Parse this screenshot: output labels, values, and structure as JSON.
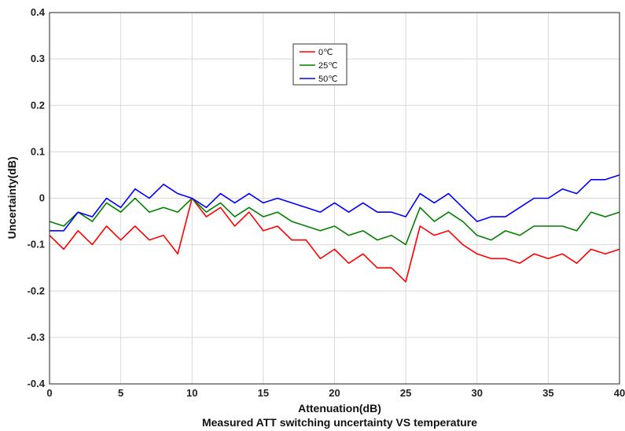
{
  "chart_data": {
    "type": "line",
    "title": "Measured ATT switching uncertainty VS temperature",
    "xlabel": "Attenuation(dB)",
    "ylabel": "Uncertainty(dB)",
    "xlim": [
      0,
      40
    ],
    "ylim": [
      -0.4,
      0.4
    ],
    "xticks": [
      0,
      5,
      10,
      15,
      20,
      25,
      30,
      35,
      40
    ],
    "yticks": [
      -0.4,
      -0.3,
      -0.2,
      -0.1,
      0,
      0.1,
      0.2,
      0.3,
      0.4
    ],
    "xtick_labels": [
      "0",
      "5",
      "10",
      "15",
      "20",
      "25",
      "30",
      "35",
      "40"
    ],
    "ytick_labels": [
      "-0.4",
      "-0.3",
      "-0.2",
      "-0.1",
      "0",
      "0.1",
      "0.2",
      "0.3",
      "0.4"
    ],
    "grid": true,
    "legend_position": "top-center",
    "x": [
      0,
      1,
      2,
      3,
      4,
      5,
      6,
      7,
      8,
      9,
      10,
      11,
      12,
      13,
      14,
      15,
      16,
      17,
      18,
      19,
      20,
      21,
      22,
      23,
      24,
      25,
      26,
      27,
      28,
      29,
      30,
      31,
      32,
      33,
      34,
      35,
      36,
      37,
      38,
      39,
      40
    ],
    "series": [
      {
        "name": "0℃",
        "color": "#ff0000",
        "values": [
          -0.08,
          -0.11,
          -0.07,
          -0.1,
          -0.06,
          -0.09,
          -0.06,
          -0.09,
          -0.08,
          -0.12,
          0.0,
          -0.04,
          -0.02,
          -0.06,
          -0.03,
          -0.07,
          -0.06,
          -0.09,
          -0.09,
          -0.13,
          -0.11,
          -0.14,
          -0.12,
          -0.15,
          -0.15,
          -0.18,
          -0.06,
          -0.08,
          -0.07,
          -0.1,
          -0.12,
          -0.13,
          -0.13,
          -0.14,
          -0.12,
          -0.13,
          -0.12,
          -0.14,
          -0.11,
          -0.12,
          -0.11
        ]
      },
      {
        "name": "25℃",
        "color": "#008000",
        "values": [
          -0.05,
          -0.06,
          -0.03,
          -0.05,
          -0.01,
          -0.03,
          0.0,
          -0.03,
          -0.02,
          -0.03,
          0.0,
          -0.03,
          -0.01,
          -0.04,
          -0.02,
          -0.04,
          -0.03,
          -0.05,
          -0.06,
          -0.07,
          -0.06,
          -0.08,
          -0.07,
          -0.09,
          -0.08,
          -0.1,
          -0.02,
          -0.05,
          -0.03,
          -0.05,
          -0.08,
          -0.09,
          -0.07,
          -0.08,
          -0.06,
          -0.06,
          -0.06,
          -0.07,
          -0.03,
          -0.04,
          -0.03
        ]
      },
      {
        "name": "50℃",
        "color": "#0000ff",
        "values": [
          -0.07,
          -0.07,
          -0.03,
          -0.04,
          0.0,
          -0.02,
          0.02,
          0.0,
          0.03,
          0.01,
          0.0,
          -0.02,
          0.01,
          -0.01,
          0.01,
          -0.01,
          0.0,
          -0.01,
          -0.02,
          -0.03,
          -0.01,
          -0.03,
          -0.01,
          -0.03,
          -0.03,
          -0.04,
          0.01,
          -0.01,
          0.01,
          -0.02,
          -0.05,
          -0.04,
          -0.04,
          -0.02,
          0.0,
          0.0,
          0.02,
          0.01,
          0.04,
          0.04,
          0.05
        ]
      }
    ]
  }
}
